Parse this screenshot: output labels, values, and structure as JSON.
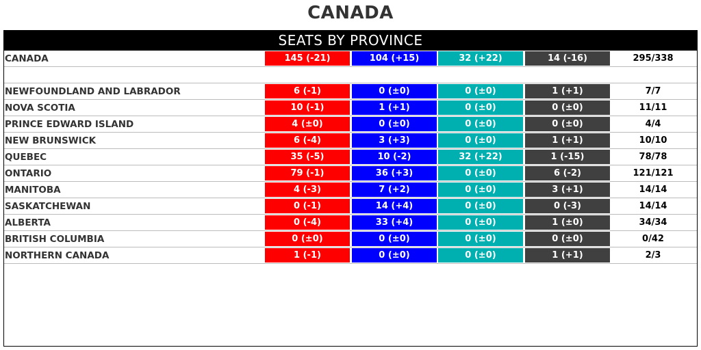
{
  "page_title": "CANADA",
  "panel_title": "SEATS BY PROVINCE",
  "colors": {
    "liberal": "#ff0000",
    "conservative": "#0000ff",
    "bloc": "#00b0b0",
    "ndp": "#404040",
    "header_bg": "#000000"
  },
  "summary": {
    "name": "CANADA",
    "lib": "145 (-21)",
    "con": "104 (+15)",
    "bq": "32 (+22)",
    "ndp": "14 (-16)",
    "total": "295/338"
  },
  "rows": [
    {
      "name": "NEWFOUNDLAND AND LABRADOR",
      "lib": "6 (-1)",
      "con": "0 (±0)",
      "bq": "0 (±0)",
      "ndp": "1 (+1)",
      "total": "7/7"
    },
    {
      "name": "NOVA SCOTIA",
      "lib": "10 (-1)",
      "con": "1 (+1)",
      "bq": "0 (±0)",
      "ndp": "0 (±0)",
      "total": "11/11"
    },
    {
      "name": "PRINCE EDWARD ISLAND",
      "lib": "4 (±0)",
      "con": "0 (±0)",
      "bq": "0 (±0)",
      "ndp": "0 (±0)",
      "total": "4/4"
    },
    {
      "name": "NEW BRUNSWICK",
      "lib": "6 (-4)",
      "con": "3 (+3)",
      "bq": "0 (±0)",
      "ndp": "1 (+1)",
      "total": "10/10"
    },
    {
      "name": "QUEBEC",
      "lib": "35 (-5)",
      "con": "10 (-2)",
      "bq": "32 (+22)",
      "ndp": "1 (-15)",
      "total": "78/78"
    },
    {
      "name": "ONTARIO",
      "lib": "79 (-1)",
      "con": "36 (+3)",
      "bq": "0 (±0)",
      "ndp": "6 (-2)",
      "total": "121/121"
    },
    {
      "name": "MANITOBA",
      "lib": "4 (-3)",
      "con": "7 (+2)",
      "bq": "0 (±0)",
      "ndp": "3 (+1)",
      "total": "14/14"
    },
    {
      "name": "SASKATCHEWAN",
      "lib": "0 (-1)",
      "con": "14 (+4)",
      "bq": "0 (±0)",
      "ndp": "0 (-3)",
      "total": "14/14"
    },
    {
      "name": "ALBERTA",
      "lib": "0 (-4)",
      "con": "33 (+4)",
      "bq": "0 (±0)",
      "ndp": "1 (±0)",
      "total": "34/34"
    },
    {
      "name": "BRITISH COLUMBIA",
      "lib": "0 (±0)",
      "con": "0 (±0)",
      "bq": "0 (±0)",
      "ndp": "0 (±0)",
      "total": "0/42"
    },
    {
      "name": "NORTHERN CANADA",
      "lib": "1 (-1)",
      "con": "0 (±0)",
      "bq": "0 (±0)",
      "ndp": "1 (+1)",
      "total": "2/3"
    }
  ]
}
